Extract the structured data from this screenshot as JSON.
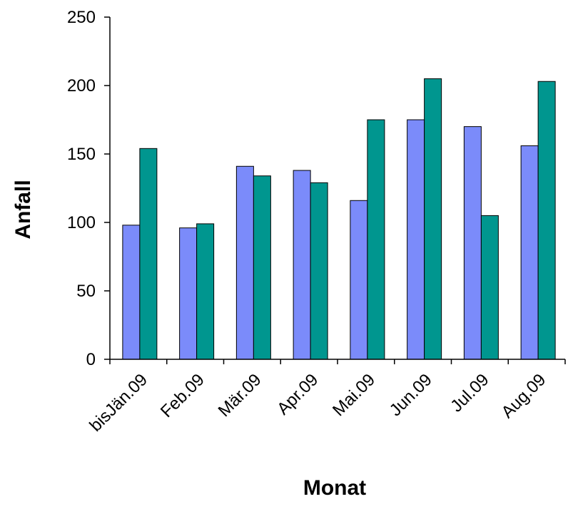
{
  "chart_data": {
    "type": "bar",
    "title": "",
    "xlabel": "Monat",
    "ylabel": "Anfall",
    "categories": [
      "bisJän.09",
      "Feb.09",
      "Mär.09",
      "Apr.09",
      "Mai.09",
      "Jun.09",
      "Jul.09",
      "Aug.09"
    ],
    "series": [
      {
        "values": [
          98,
          96,
          141,
          138,
          116,
          175,
          170,
          156
        ],
        "color": "#7b8bfa"
      },
      {
        "values": [
          154,
          99,
          134,
          129,
          175,
          205,
          105,
          203
        ],
        "color": "#00968f"
      }
    ],
    "ylim": [
      0,
      250
    ],
    "yticks": [
      0,
      50,
      100,
      150,
      200,
      250
    ],
    "grid": false,
    "legend": "none"
  }
}
